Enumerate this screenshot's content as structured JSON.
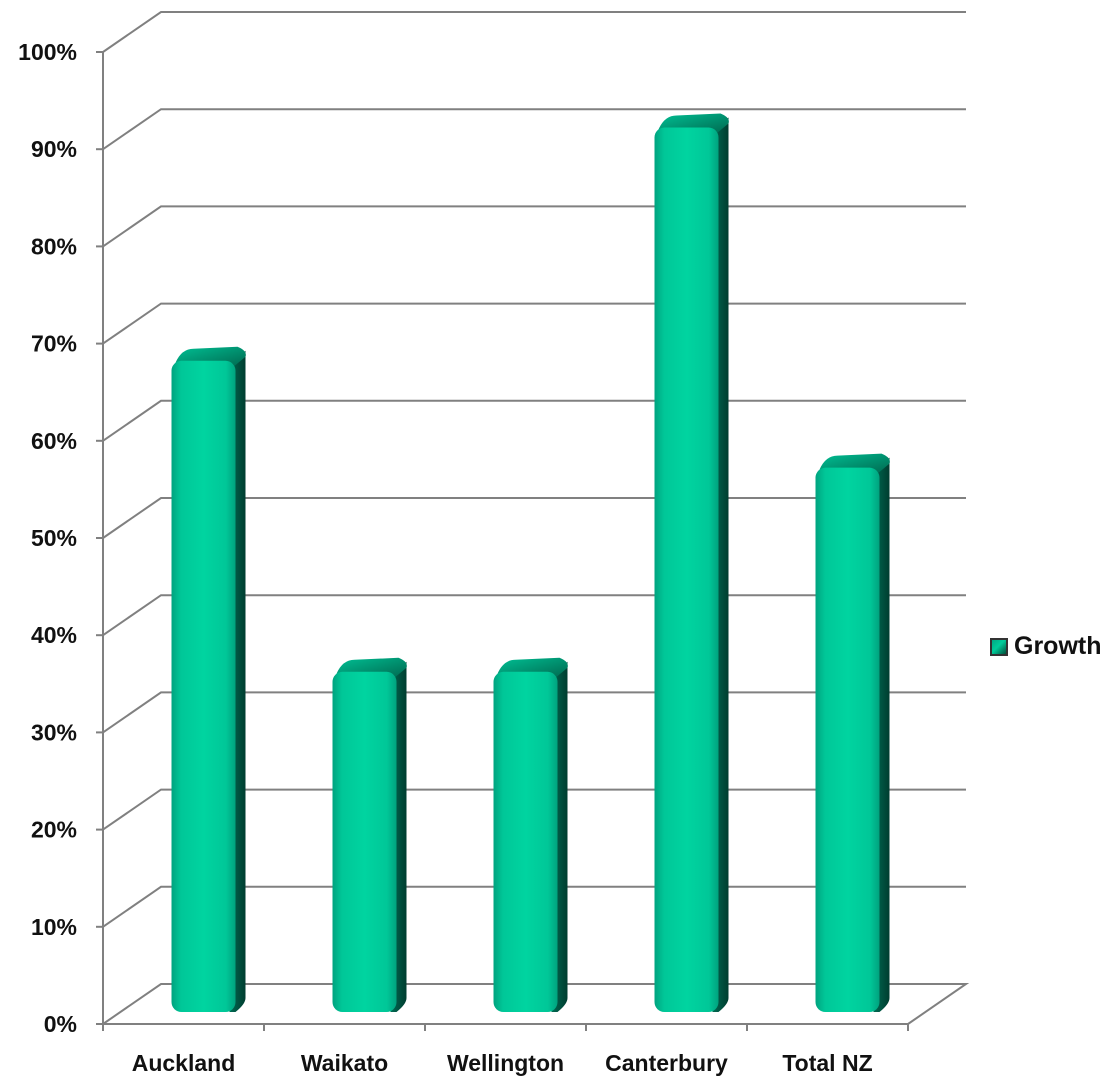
{
  "chart_data": {
    "type": "bar",
    "categories": [
      "Auckland",
      "Waikato",
      "Wellington",
      "Canterbury",
      "Total NZ"
    ],
    "series": [
      {
        "name": "Growth",
        "values": [
          67,
          35,
          35,
          91,
          56
        ]
      }
    ],
    "ylim": [
      0,
      100
    ],
    "yticks": [
      "0%",
      "10%",
      "20%",
      "30%",
      "40%",
      "50%",
      "60%",
      "70%",
      "80%",
      "90%",
      "100%"
    ],
    "title": "",
    "xlabel": "",
    "ylabel": "",
    "grid": true,
    "legend_position": "right",
    "colors": {
      "bar_front": "#00cc9a",
      "bar_side": "#00483a",
      "grid": "#808080"
    }
  },
  "legend": {
    "label": "Growth"
  }
}
